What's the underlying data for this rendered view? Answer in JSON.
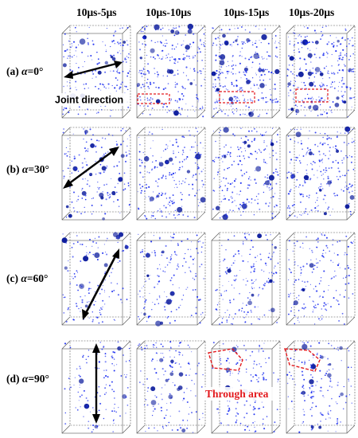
{
  "columns": [
    "10μs-5μs",
    "10μs-10μs",
    "10μs-15μs",
    "10μs-20μs"
  ],
  "rows": [
    {
      "prefix": "(a) ",
      "symbol": "α",
      "value": "=0°",
      "density": 1.0
    },
    {
      "prefix": "(b) ",
      "symbol": "α",
      "value": "=30°",
      "density": 0.72
    },
    {
      "prefix": "(c) ",
      "symbol": "α",
      "value": "=60°",
      "density": 0.38
    },
    {
      "prefix": "(d) ",
      "symbol": "α",
      "value": "=90°",
      "density": 0.3
    }
  ],
  "annotations": {
    "joint_direction": "Joint direction",
    "through_area": "Through area"
  },
  "colors": {
    "crack": "#1a2cf0",
    "crack_dark": "#0a1a9c",
    "arrow": "#000000",
    "highlight": "#e3191d",
    "frame": "#555555"
  }
}
